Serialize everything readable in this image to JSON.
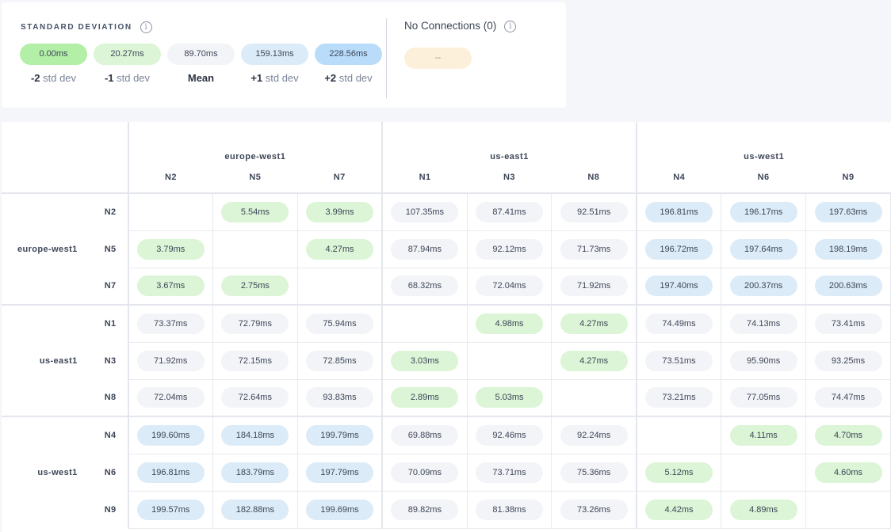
{
  "legend": {
    "title": "STANDARD DEVIATION",
    "info_icon": "info-icon",
    "items": [
      {
        "value": "0.00ms",
        "prefix": "-2",
        "suffix": " std dev",
        "color": "#b4efa8"
      },
      {
        "value": "20.27ms",
        "prefix": "-1",
        "suffix": " std dev",
        "color": "#dcf5d6"
      },
      {
        "value": "89.70ms",
        "prefix": "Mean",
        "suffix": "",
        "color": "#f3f4f8"
      },
      {
        "value": "159.13ms",
        "prefix": "+1",
        "suffix": " std dev",
        "color": "#dcebf8"
      },
      {
        "value": "228.56ms",
        "prefix": "+2",
        "suffix": " std dev",
        "color": "#b9dcfb"
      }
    ],
    "no_connections": {
      "title": "No Connections (0)",
      "value": "--",
      "color": "#fdf0db"
    }
  },
  "matrix": {
    "regions": [
      {
        "name": "europe-west1",
        "nodes": [
          "N2",
          "N5",
          "N7"
        ]
      },
      {
        "name": "us-east1",
        "nodes": [
          "N1",
          "N3",
          "N8"
        ]
      },
      {
        "name": "us-west1",
        "nodes": [
          "N4",
          "N6",
          "N9"
        ]
      }
    ],
    "rows": [
      [
        null,
        "5.54ms",
        "3.99ms",
        "107.35ms",
        "87.41ms",
        "92.51ms",
        "196.81ms",
        "196.17ms",
        "197.63ms"
      ],
      [
        "3.79ms",
        null,
        "4.27ms",
        "87.94ms",
        "92.12ms",
        "71.73ms",
        "196.72ms",
        "197.64ms",
        "198.19ms"
      ],
      [
        "3.67ms",
        "2.75ms",
        null,
        "68.32ms",
        "72.04ms",
        "71.92ms",
        "197.40ms",
        "200.37ms",
        "200.63ms"
      ],
      [
        "73.37ms",
        "72.79ms",
        "75.94ms",
        null,
        "4.98ms",
        "4.27ms",
        "74.49ms",
        "74.13ms",
        "73.41ms"
      ],
      [
        "71.92ms",
        "72.15ms",
        "72.85ms",
        "3.03ms",
        null,
        "4.27ms",
        "73.51ms",
        "95.90ms",
        "93.25ms"
      ],
      [
        "72.04ms",
        "72.64ms",
        "93.83ms",
        "2.89ms",
        "5.03ms",
        null,
        "73.21ms",
        "77.05ms",
        "74.47ms"
      ],
      [
        "199.60ms",
        "184.18ms",
        "199.79ms",
        "69.88ms",
        "92.46ms",
        "92.24ms",
        null,
        "4.11ms",
        "4.70ms"
      ],
      [
        "196.81ms",
        "183.79ms",
        "197.79ms",
        "70.09ms",
        "73.71ms",
        "75.36ms",
        "5.12ms",
        null,
        "4.60ms"
      ],
      [
        "199.57ms",
        "182.88ms",
        "199.69ms",
        "89.82ms",
        "81.38ms",
        "73.26ms",
        "4.42ms",
        "4.89ms",
        null
      ]
    ]
  }
}
